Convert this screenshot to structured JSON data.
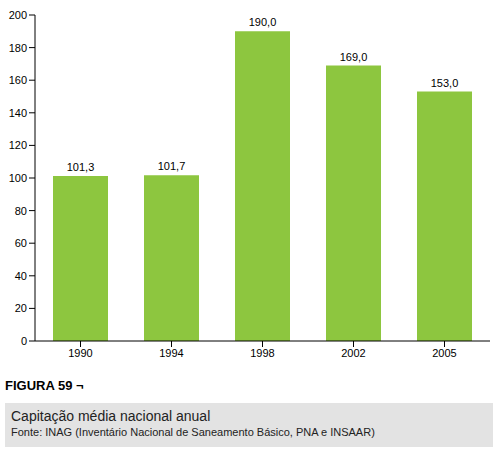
{
  "chart_data": {
    "type": "bar",
    "figure_label": "FIGURA 59 ¬",
    "title": "Capitação média nacional anual",
    "source": "Fonte: INAG (Inventário Nacional de Saneamento Básico, PNA e INSAAR)",
    "categories": [
      "1990",
      "1994",
      "1998",
      "2002",
      "2005"
    ],
    "values": [
      101.3,
      101.7,
      190,
      169,
      153
    ],
    "value_labels": [
      "101,3",
      "101,7",
      "190,0",
      "169,0",
      "153,0"
    ],
    "color": "#8dc63f",
    "ylim": [
      0,
      200
    ],
    "yticks": [
      0,
      20,
      40,
      60,
      80,
      100,
      120,
      140,
      160,
      180,
      200
    ],
    "grid": false,
    "data_labels": true
  }
}
